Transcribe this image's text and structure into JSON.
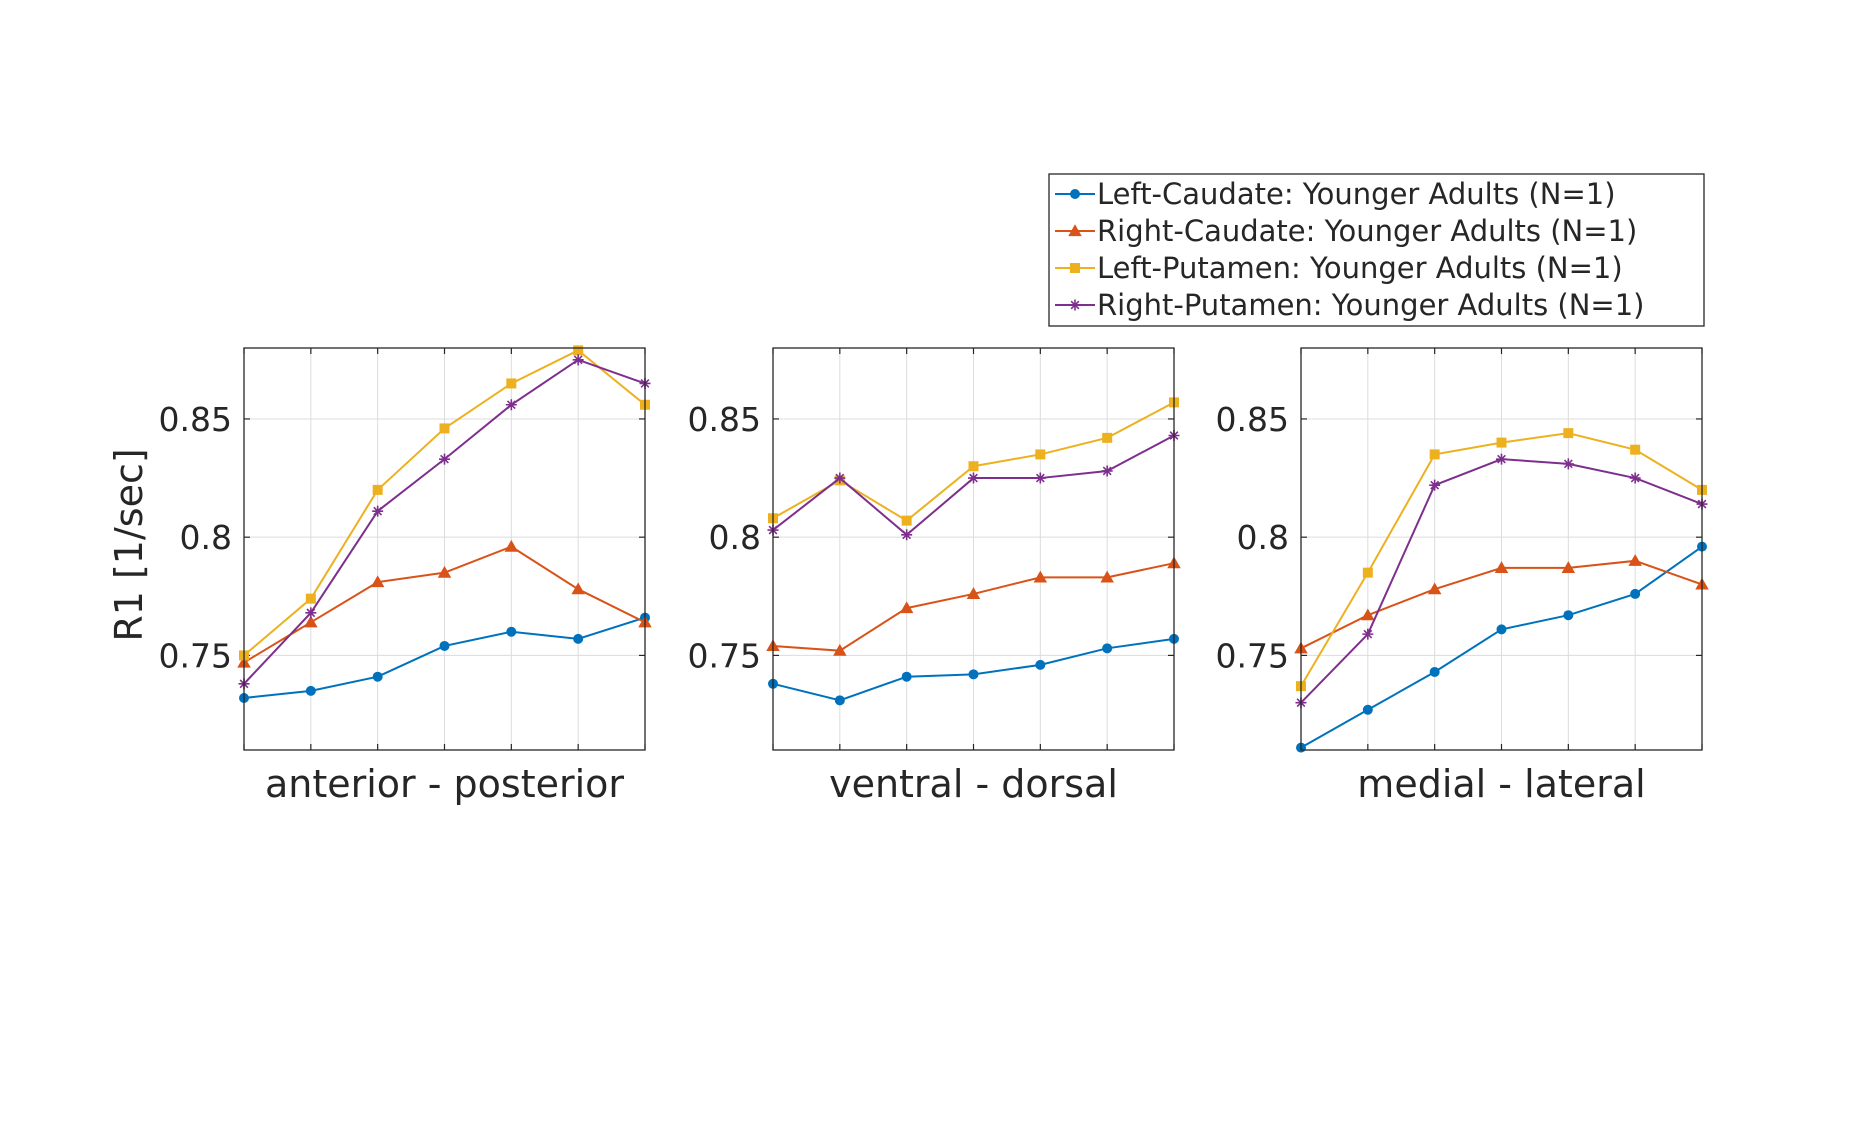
{
  "chart_data": {
    "type": "line",
    "ylabel": "R1 [1/sec]",
    "ylim": [
      0.71,
      0.88
    ],
    "yticks": [
      0.75,
      0.8,
      0.85
    ],
    "ytick_labels": [
      "0.75",
      "0.8",
      "0.85"
    ],
    "grid": true,
    "legend_position": "top-right, above the third panel",
    "legend": [
      {
        "name": "Left-Caudate: Younger Adults (N=1)",
        "color": "#0072BD",
        "marker": "circle"
      },
      {
        "name": "Right-Caudate: Younger Adults (N=1)",
        "color": "#D95319",
        "marker": "triangle"
      },
      {
        "name": "Left-Putamen: Younger Adults (N=1)",
        "color": "#EDB120",
        "marker": "square"
      },
      {
        "name": "Right-Putamen: Younger Adults (N=1)",
        "color": "#7E2F8E",
        "marker": "asterisk"
      }
    ],
    "panels": [
      {
        "xlabel": "anterior - posterior",
        "x": [
          1,
          2,
          3,
          4,
          5,
          6,
          7
        ],
        "series": [
          {
            "values": [
              0.732,
              0.735,
              0.741,
              0.754,
              0.76,
              0.757,
              0.766
            ]
          },
          {
            "values": [
              0.747,
              0.764,
              0.781,
              0.785,
              0.796,
              0.778,
              0.764
            ]
          },
          {
            "values": [
              0.75,
              0.774,
              0.82,
              0.846,
              0.865,
              0.879,
              0.856
            ]
          },
          {
            "values": [
              0.738,
              0.768,
              0.811,
              0.833,
              0.856,
              0.875,
              0.865
            ]
          }
        ]
      },
      {
        "xlabel": "ventral - dorsal",
        "x": [
          1,
          2,
          3,
          4,
          5,
          6,
          7
        ],
        "series": [
          {
            "values": [
              0.738,
              0.731,
              0.741,
              0.742,
              0.746,
              0.753,
              0.757
            ]
          },
          {
            "values": [
              0.754,
              0.752,
              0.77,
              0.776,
              0.783,
              0.783,
              0.789
            ]
          },
          {
            "values": [
              0.808,
              0.824,
              0.807,
              0.83,
              0.835,
              0.842,
              0.857
            ]
          },
          {
            "values": [
              0.803,
              0.825,
              0.801,
              0.825,
              0.825,
              0.828,
              0.843
            ]
          }
        ]
      },
      {
        "xlabel": "medial - lateral",
        "x": [
          1,
          2,
          3,
          4,
          5,
          6,
          7
        ],
        "series": [
          {
            "values": [
              0.711,
              0.727,
              0.743,
              0.761,
              0.767,
              0.776,
              0.796
            ]
          },
          {
            "values": [
              0.753,
              0.767,
              0.778,
              0.787,
              0.787,
              0.79,
              0.78
            ]
          },
          {
            "values": [
              0.737,
              0.785,
              0.835,
              0.84,
              0.844,
              0.837,
              0.82
            ]
          },
          {
            "values": [
              0.73,
              0.759,
              0.822,
              0.833,
              0.831,
              0.825,
              0.814
            ]
          }
        ]
      }
    ]
  }
}
